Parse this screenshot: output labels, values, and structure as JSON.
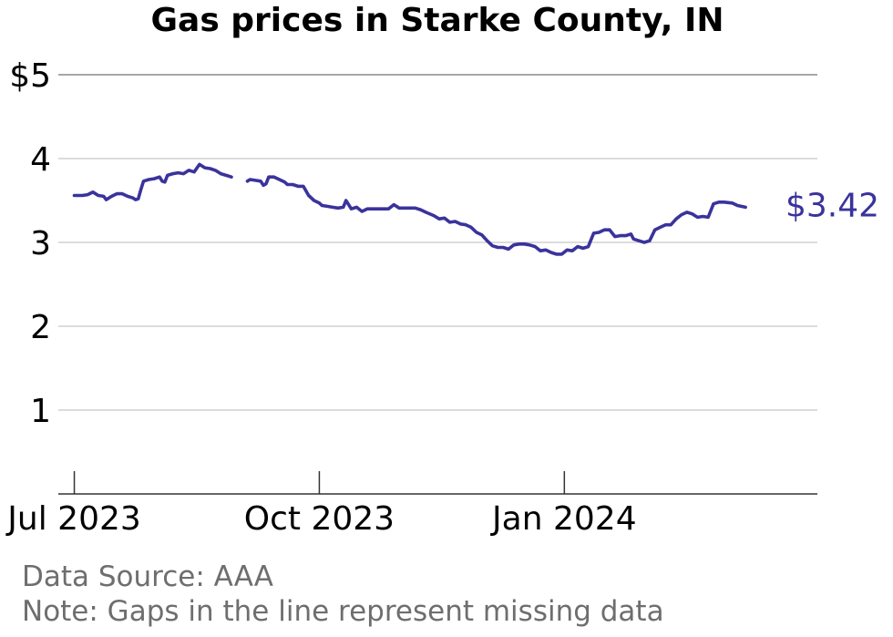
{
  "chart_data": {
    "type": "line",
    "title": "Gas prices in Starke County, IN",
    "xlabel": "",
    "ylabel": "",
    "ylim": [
      0,
      5
    ],
    "xlim": [
      "2023-06-25",
      "2024-04-05"
    ],
    "yticks": [
      {
        "value": 1,
        "label": "1"
      },
      {
        "value": 2,
        "label": "2"
      },
      {
        "value": 3,
        "label": "3"
      },
      {
        "value": 4,
        "label": "4"
      },
      {
        "value": 5,
        "label": "$5"
      }
    ],
    "xticks": [
      {
        "date": "2023-07-01",
        "label": "Jul 2023"
      },
      {
        "date": "2023-10-01",
        "label": "Oct 2023"
      },
      {
        "date": "2024-01-01",
        "label": "Jan 2024"
      }
    ],
    "grid": true,
    "line_color": "#3a339c",
    "end_label": "$3.42",
    "series": [
      {
        "segments": [
          [
            [
              "2023-07-01",
              3.56
            ],
            [
              "2023-07-04",
              3.56
            ],
            [
              "2023-07-06",
              3.57
            ],
            [
              "2023-07-08",
              3.6
            ],
            [
              "2023-07-10",
              3.56
            ],
            [
              "2023-07-12",
              3.55
            ],
            [
              "2023-07-13",
              3.51
            ],
            [
              "2023-07-15",
              3.55
            ],
            [
              "2023-07-17",
              3.58
            ],
            [
              "2023-07-19",
              3.58
            ],
            [
              "2023-07-21",
              3.55
            ],
            [
              "2023-07-23",
              3.53
            ],
            [
              "2023-07-24",
              3.51
            ],
            [
              "2023-07-25",
              3.52
            ],
            [
              "2023-07-26",
              3.63
            ],
            [
              "2023-07-27",
              3.73
            ],
            [
              "2023-07-29",
              3.75
            ],
            [
              "2023-07-31",
              3.76
            ],
            [
              "2023-08-02",
              3.78
            ],
            [
              "2023-08-03",
              3.73
            ],
            [
              "2023-08-04",
              3.72
            ],
            [
              "2023-08-05",
              3.8
            ],
            [
              "2023-08-07",
              3.82
            ],
            [
              "2023-08-09",
              3.83
            ],
            [
              "2023-08-11",
              3.82
            ],
            [
              "2023-08-13",
              3.86
            ],
            [
              "2023-08-15",
              3.84
            ],
            [
              "2023-08-17",
              3.93
            ],
            [
              "2023-08-19",
              3.89
            ],
            [
              "2023-08-21",
              3.88
            ],
            [
              "2023-08-23",
              3.86
            ],
            [
              "2023-08-25",
              3.82
            ],
            [
              "2023-08-27",
              3.8
            ],
            [
              "2023-08-29",
              3.78
            ]
          ],
          [
            [
              "2023-09-04",
              3.73
            ],
            [
              "2023-09-05",
              3.75
            ],
            [
              "2023-09-07",
              3.74
            ],
            [
              "2023-09-09",
              3.73
            ],
            [
              "2023-09-10",
              3.68
            ],
            [
              "2023-09-11",
              3.7
            ],
            [
              "2023-09-12",
              3.78
            ],
            [
              "2023-09-14",
              3.78
            ],
            [
              "2023-09-16",
              3.75
            ],
            [
              "2023-09-18",
              3.72
            ],
            [
              "2023-09-19",
              3.69
            ],
            [
              "2023-09-21",
              3.69
            ],
            [
              "2023-09-23",
              3.67
            ],
            [
              "2023-09-25",
              3.67
            ],
            [
              "2023-09-27",
              3.56
            ],
            [
              "2023-09-29",
              3.5
            ],
            [
              "2023-10-01",
              3.47
            ],
            [
              "2023-10-02",
              3.44
            ],
            [
              "2023-10-04",
              3.43
            ],
            [
              "2023-10-06",
              3.42
            ],
            [
              "2023-10-08",
              3.41
            ],
            [
              "2023-10-10",
              3.42
            ],
            [
              "2023-10-11",
              3.5
            ],
            [
              "2023-10-13",
              3.4
            ],
            [
              "2023-10-15",
              3.42
            ],
            [
              "2023-10-17",
              3.37
            ],
            [
              "2023-10-19",
              3.4
            ],
            [
              "2023-10-23",
              3.4
            ],
            [
              "2023-10-27",
              3.4
            ],
            [
              "2023-10-29",
              3.45
            ],
            [
              "2023-10-31",
              3.41
            ],
            [
              "2023-11-02",
              3.41
            ],
            [
              "2023-11-06",
              3.41
            ],
            [
              "2023-11-08",
              3.39
            ],
            [
              "2023-11-10",
              3.36
            ],
            [
              "2023-11-13",
              3.32
            ],
            [
              "2023-11-15",
              3.28
            ],
            [
              "2023-11-17",
              3.29
            ],
            [
              "2023-11-19",
              3.24
            ],
            [
              "2023-11-21",
              3.25
            ],
            [
              "2023-11-23",
              3.22
            ],
            [
              "2023-11-25",
              3.21
            ],
            [
              "2023-11-27",
              3.18
            ],
            [
              "2023-11-29",
              3.12
            ],
            [
              "2023-12-01",
              3.09
            ],
            [
              "2023-12-03",
              3.02
            ],
            [
              "2023-12-05",
              2.96
            ],
            [
              "2023-12-07",
              2.94
            ],
            [
              "2023-12-09",
              2.94
            ],
            [
              "2023-12-11",
              2.92
            ],
            [
              "2023-12-13",
              2.97
            ],
            [
              "2023-12-15",
              2.98
            ],
            [
              "2023-12-17",
              2.98
            ],
            [
              "2023-12-19",
              2.97
            ],
            [
              "2023-12-21",
              2.95
            ],
            [
              "2023-12-23",
              2.9
            ],
            [
              "2023-12-25",
              2.91
            ],
            [
              "2023-12-27",
              2.88
            ],
            [
              "2023-12-29",
              2.86
            ],
            [
              "2023-12-31",
              2.86
            ],
            [
              "2024-01-02",
              2.91
            ],
            [
              "2024-01-04",
              2.9
            ],
            [
              "2024-01-06",
              2.95
            ],
            [
              "2024-01-08",
              2.93
            ],
            [
              "2024-01-10",
              2.95
            ],
            [
              "2024-01-12",
              3.11
            ],
            [
              "2024-01-14",
              3.12
            ],
            [
              "2024-01-16",
              3.15
            ],
            [
              "2024-01-18",
              3.15
            ],
            [
              "2024-01-20",
              3.07
            ],
            [
              "2024-01-22",
              3.08
            ],
            [
              "2024-01-24",
              3.08
            ],
            [
              "2024-01-26",
              3.1
            ],
            [
              "2024-01-27",
              3.04
            ],
            [
              "2024-01-29",
              3.02
            ],
            [
              "2024-01-31",
              3.0
            ],
            [
              "2024-02-02",
              3.02
            ],
            [
              "2024-02-04",
              3.15
            ],
            [
              "2024-02-06",
              3.18
            ],
            [
              "2024-02-08",
              3.21
            ],
            [
              "2024-02-10",
              3.21
            ],
            [
              "2024-02-12",
              3.28
            ],
            [
              "2024-02-14",
              3.33
            ],
            [
              "2024-02-16",
              3.36
            ],
            [
              "2024-02-18",
              3.34
            ],
            [
              "2024-02-20",
              3.3
            ],
            [
              "2024-02-22",
              3.31
            ],
            [
              "2024-02-24",
              3.3
            ],
            [
              "2024-02-26",
              3.46
            ],
            [
              "2024-02-28",
              3.48
            ],
            [
              "2024-03-01",
              3.48
            ],
            [
              "2024-03-04",
              3.47
            ],
            [
              "2024-03-06",
              3.44
            ],
            [
              "2024-03-09",
              3.42
            ]
          ]
        ]
      }
    ]
  },
  "footer": {
    "source": "Data Source: AAA",
    "note": "Note: Gaps in the line represent missing data"
  }
}
